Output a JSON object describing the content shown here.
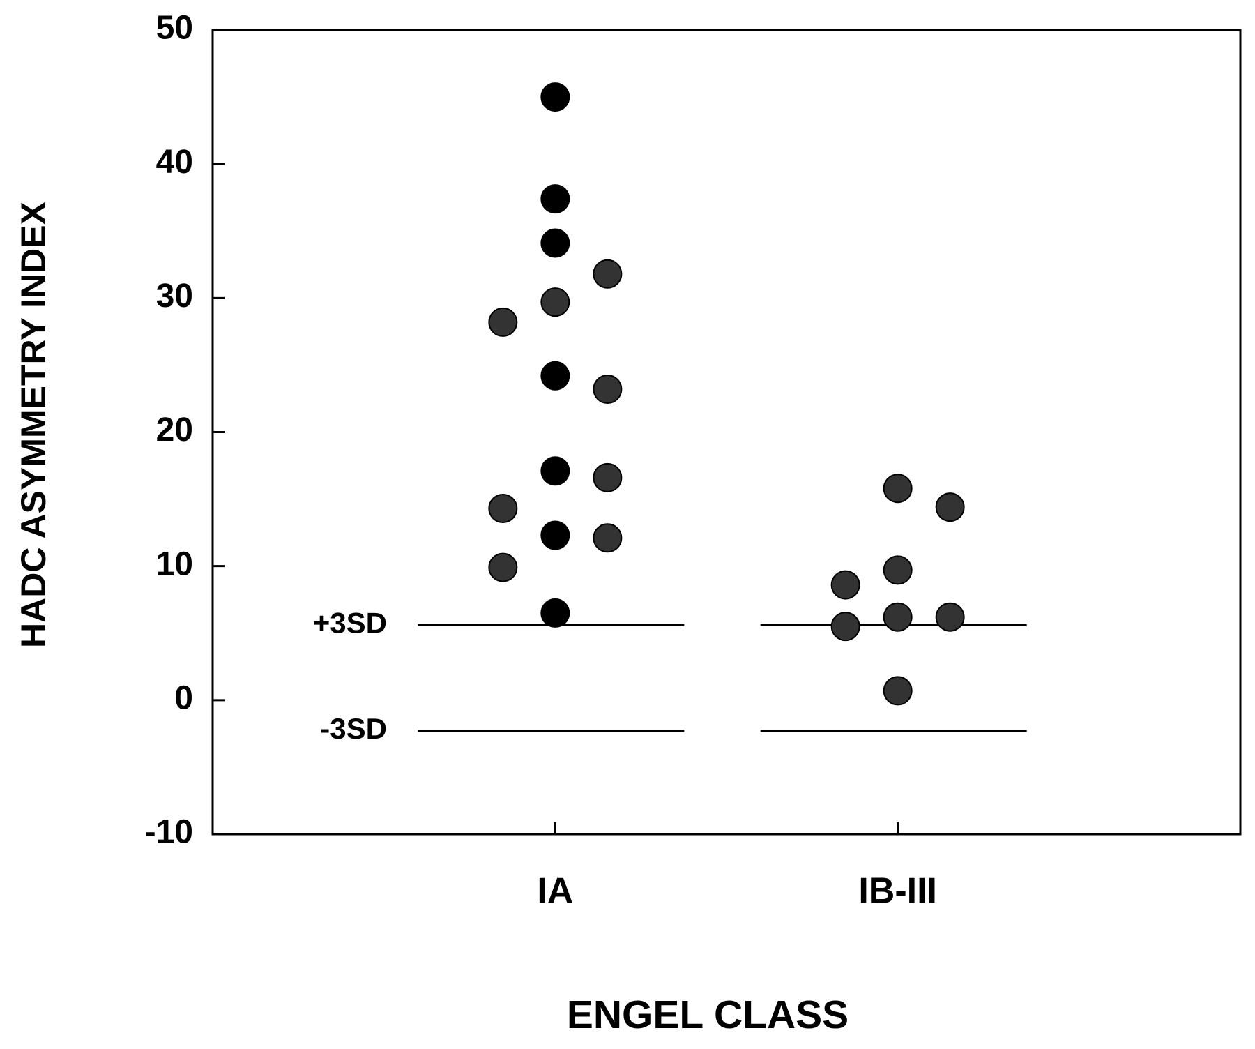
{
  "chart_data": {
    "type": "strip",
    "x_label": "ENGEL CLASS",
    "y_label": "HADC ASYMMETRY INDEX",
    "categories": [
      "IA",
      "IB-III"
    ],
    "values": [
      [
        45.0,
        37.4,
        34.1,
        31.8,
        29.7,
        28.2,
        24.2,
        23.2,
        17.1,
        16.6,
        14.3,
        12.3,
        12.1,
        9.9,
        6.5
      ],
      [
        15.8,
        14.4,
        9.7,
        8.6,
        6.2,
        6.2,
        5.5,
        0.7
      ]
    ],
    "point_colors": [
      [
        "#000000",
        "#000000",
        "#000000",
        "#333333",
        "#333333",
        "#333333",
        "#000000",
        "#333333",
        "#000000",
        "#333333",
        "#333333",
        "#000000",
        "#333333",
        "#333333",
        "#000000"
      ],
      [
        "#333333",
        "#333333",
        "#333333",
        "#333333",
        "#333333",
        "#333333",
        "#333333",
        "#333333"
      ]
    ],
    "reference_lines": [
      {
        "label": "+3SD",
        "value": 5.6
      },
      {
        "label": "-3SD",
        "value": -2.3
      }
    ],
    "ylim": [
      -10,
      50
    ],
    "yticks": [
      -10,
      0,
      10,
      20,
      30,
      40,
      50
    ]
  }
}
